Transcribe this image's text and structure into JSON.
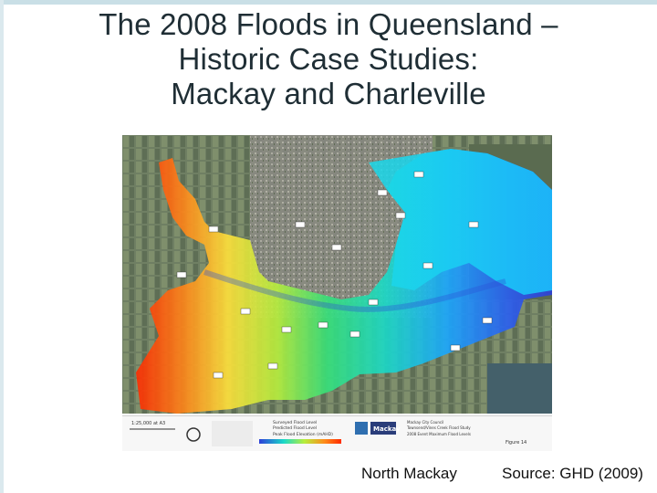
{
  "slide": {
    "title_lines": [
      "The 2008 Floods in Queensland –",
      "Historic Case Studies:",
      "Mackay and Charleville"
    ]
  },
  "map": {
    "figure_label": "Figure 14",
    "legend": {
      "scale_label": "1:25,000 at A3",
      "surveyed_flood_level": "Surveyed Flood Level",
      "predicted_flood_level": "Predicted Flood Level",
      "peak_flood_elevation": "Peak Flood Elevation (mAHD)",
      "project_client": "Mackay City Council",
      "project_name": "Townsend/Vines Creek Flood Study",
      "plot_title": "2008 Event Maximum Flood Levels",
      "logo_text": "Mackay"
    }
  },
  "captions": {
    "location": "North Mackay",
    "source": "Source: GHD (2009)"
  }
}
